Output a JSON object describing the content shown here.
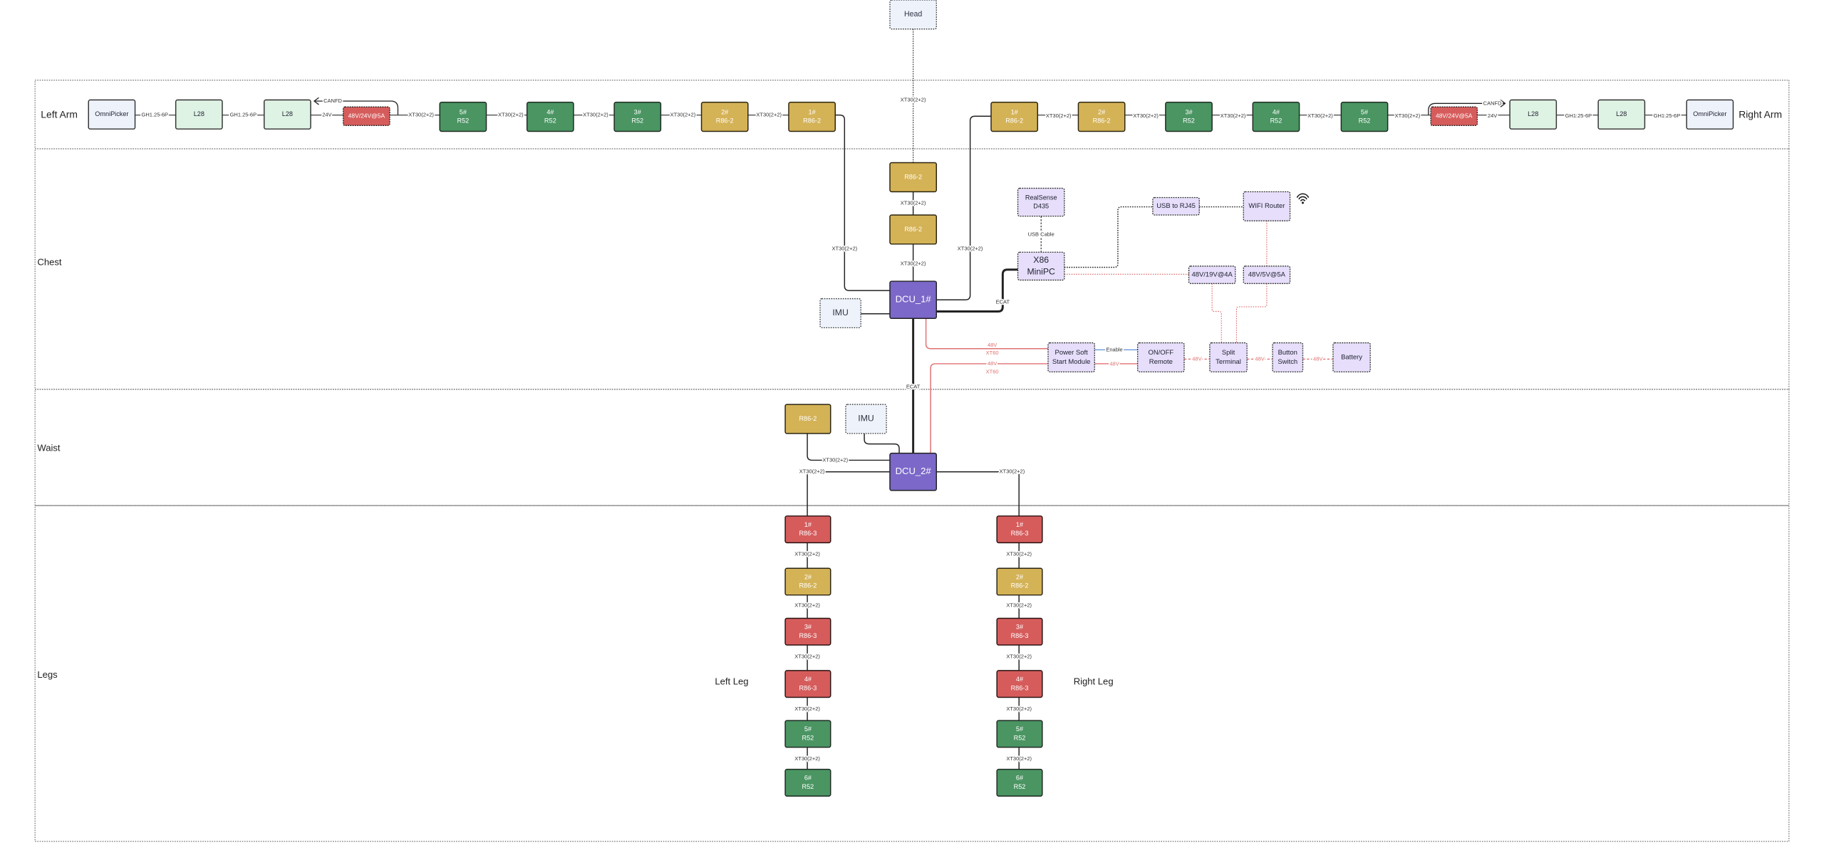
{
  "colors": {
    "R52": "#4a9562",
    "R86-2": "#d4b256",
    "R86-3": "#d65c5c",
    "power": "#d65c5c",
    "dcu": "#7b68c8",
    "gripper": "#eef3fb",
    "L28": "#dff3e4",
    "imu": "#eef3fb",
    "electronics": "#e6defa",
    "power_line": "#e07070",
    "enable_line": "#5b8fd6"
  },
  "head": {
    "lines": [
      "Head"
    ],
    "link": "XT30(2+2)"
  },
  "left_arm": {
    "label": "Left Arm",
    "canfd": "CANFD",
    "nodes": [
      {
        "lines": [
          "OmniPicker"
        ],
        "kind": "gripper"
      },
      {
        "lines": [
          "L28"
        ],
        "kind": "L28"
      },
      {
        "lines": [
          "L28"
        ],
        "kind": "L28"
      },
      {
        "lines": [
          "48V/24V@5A"
        ],
        "kind": "power"
      },
      {
        "lines": [
          "5#",
          "R52"
        ],
        "kind": "R52"
      },
      {
        "lines": [
          "4#",
          "R52"
        ],
        "kind": "R52"
      },
      {
        "lines": [
          "3#",
          "R52"
        ],
        "kind": "R52"
      },
      {
        "lines": [
          "2#",
          "R86-2"
        ],
        "kind": "R86-2"
      },
      {
        "lines": [
          "1#",
          "R86-2"
        ],
        "kind": "R86-2"
      }
    ],
    "links": [
      "GH1.25-6P",
      "GH1.25-6P",
      "24V",
      "XT30(2+2)",
      "XT30(2+2)",
      "XT30(2+2)",
      "XT30(2+2)",
      "XT30(2+2)"
    ],
    "to_dcu": "XT30(2+2)"
  },
  "right_arm": {
    "label": "Right Arm",
    "canfd": "CANFD",
    "nodes": [
      {
        "lines": [
          "1#",
          "R86-2"
        ],
        "kind": "R86-2"
      },
      {
        "lines": [
          "2#",
          "R86-2"
        ],
        "kind": "R86-2"
      },
      {
        "lines": [
          "3#",
          "R52"
        ],
        "kind": "R52"
      },
      {
        "lines": [
          "4#",
          "R52"
        ],
        "kind": "R52"
      },
      {
        "lines": [
          "5#",
          "R52"
        ],
        "kind": "R52"
      },
      {
        "lines": [
          "48V/24V@5A"
        ],
        "kind": "power"
      },
      {
        "lines": [
          "L28"
        ],
        "kind": "L28"
      },
      {
        "lines": [
          "L28"
        ],
        "kind": "L28"
      },
      {
        "lines": [
          "OmniPicker"
        ],
        "kind": "gripper"
      }
    ],
    "links": [
      "XT30(2+2)",
      "XT30(2+2)",
      "XT30(2+2)",
      "XT30(2+2)",
      "XT30(2+2)",
      "24V",
      "GH1.25-6P",
      "GH1.25-6P"
    ],
    "to_dcu": "XT30(2+2)"
  },
  "chest": {
    "label": "Chest",
    "r86_top": {
      "lines": [
        "R86-2"
      ]
    },
    "r86_bottom": {
      "lines": [
        "R86-2"
      ]
    },
    "link_top": "XT30(2+2)",
    "link_bottom": "XT30(2+2)",
    "dcu": {
      "lines": [
        "DCU_1#"
      ]
    },
    "imu": {
      "lines": [
        "IMU"
      ]
    },
    "realsense": {
      "lines": [
        "RealSense",
        "D435"
      ]
    },
    "usb_cable": "USB Cable",
    "minipc": {
      "lines": [
        "X86",
        "MiniPC"
      ]
    },
    "ecat": "ECAT",
    "usb_rj45": {
      "lines": [
        "USB to RJ45"
      ]
    },
    "wifi_router": {
      "lines": [
        "WIFI Router"
      ]
    },
    "conv_19v": {
      "lines": [
        "48V/19V@4A"
      ]
    },
    "conv_5v": {
      "lines": [
        "48V/5V@5A"
      ]
    },
    "power_soft_start": {
      "lines": [
        "Power Soft",
        "Start Module"
      ]
    },
    "onoff_remote": {
      "lines": [
        "ON/OFF",
        "Remote"
      ]
    },
    "split_terminal": {
      "lines": [
        "Split",
        "Terminal"
      ]
    },
    "button_switch": {
      "lines": [
        "Button",
        "Switch"
      ]
    },
    "battery": {
      "lines": [
        "Battery"
      ]
    },
    "xt60_a": [
      "48V",
      "XT60"
    ],
    "xt60_b": [
      "48V",
      "XT60"
    ],
    "enable": "Enable",
    "v48_pssm": "48V",
    "v48_onoff": "48V",
    "v48_split": "48V",
    "v48_button": "48V",
    "ecat_down": "ECAT"
  },
  "waist": {
    "label": "Waist",
    "r86": {
      "lines": [
        "R86-2"
      ]
    },
    "imu": {
      "lines": [
        "IMU"
      ]
    },
    "dcu": {
      "lines": [
        "DCU_2#"
      ]
    },
    "link_r86": "XT30(2+2)",
    "link_left_leg": "XT30(2+2)",
    "link_right_leg": "XT30(2+2)"
  },
  "legs": {
    "label": "Legs"
  },
  "left_leg": {
    "label": "Left Leg",
    "nodes": [
      {
        "lines": [
          "1#",
          "R86-3"
        ],
        "kind": "R86-3"
      },
      {
        "lines": [
          "2#",
          "R86-2"
        ],
        "kind": "R86-2"
      },
      {
        "lines": [
          "3#",
          "R86-3"
        ],
        "kind": "R86-3"
      },
      {
        "lines": [
          "4#",
          "R86-3"
        ],
        "kind": "R86-3"
      },
      {
        "lines": [
          "5#",
          "R52"
        ],
        "kind": "R52"
      },
      {
        "lines": [
          "6#",
          "R52"
        ],
        "kind": "R52"
      }
    ],
    "links": [
      "XT30(2+2)",
      "XT30(2+2)",
      "XT30(2+2)",
      "XT30(2+2)",
      "XT30(2+2)"
    ]
  },
  "right_leg": {
    "label": "Right Leg",
    "nodes": [
      {
        "lines": [
          "1#",
          "R86-3"
        ],
        "kind": "R86-3"
      },
      {
        "lines": [
          "2#",
          "R86-2"
        ],
        "kind": "R86-2"
      },
      {
        "lines": [
          "3#",
          "R86-3"
        ],
        "kind": "R86-3"
      },
      {
        "lines": [
          "4#",
          "R86-3"
        ],
        "kind": "R86-3"
      },
      {
        "lines": [
          "5#",
          "R52"
        ],
        "kind": "R52"
      },
      {
        "lines": [
          "6#",
          "R52"
        ],
        "kind": "R52"
      }
    ],
    "links": [
      "XT30(2+2)",
      "XT30(2+2)",
      "XT30(2+2)",
      "XT30(2+2)",
      "XT30(2+2)"
    ]
  }
}
